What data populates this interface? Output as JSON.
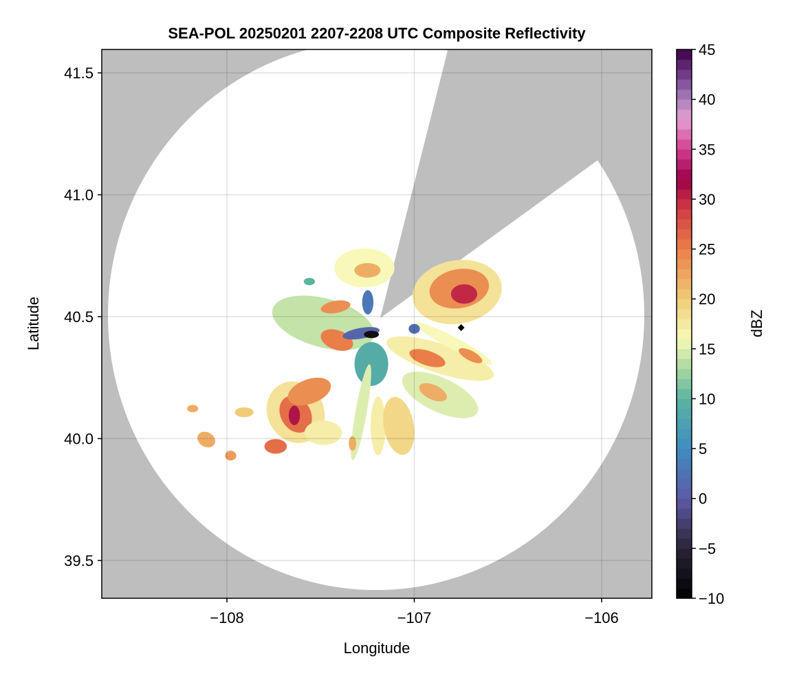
{
  "chart_data": {
    "type": "heatmap",
    "title": "SEA-POL 20250201 2207-2208 UTC Composite Reflectivity",
    "xlabel": "Longitude",
    "ylabel": "Latitude",
    "xlim": [
      -108.668,
      -105.732
    ],
    "ylim": [
      39.345,
      41.596
    ],
    "xticks": [
      -108,
      -107,
      -106
    ],
    "xtick_labels": [
      "−108",
      "−107",
      "−106"
    ],
    "yticks": [
      39.5,
      40.0,
      40.5,
      41.0,
      41.5
    ],
    "ytick_labels": [
      "39.5",
      "40.0",
      "40.5",
      "41.0",
      "41.5"
    ],
    "grid": true,
    "background_color": "#bebebe",
    "radar_center": [
      -107.2,
      40.47
    ],
    "colorbar": {
      "label": "dBZ",
      "range": [
        -10,
        45
      ],
      "ticks": [
        -10,
        -5,
        0,
        5,
        10,
        15,
        20,
        25,
        30,
        35,
        40,
        45
      ],
      "tick_labels": [
        "−10",
        "−5",
        "0",
        "5",
        "10",
        "15",
        "20",
        "25",
        "30",
        "35",
        "40",
        "45"
      ],
      "colormap": [
        [
          -10,
          "#000000"
        ],
        [
          -5,
          "#2a2438"
        ],
        [
          0,
          "#5d5aa6"
        ],
        [
          5,
          "#3f8cc0"
        ],
        [
          10,
          "#5ab4a0"
        ],
        [
          13,
          "#a8d8a0"
        ],
        [
          16,
          "#f8f8b8"
        ],
        [
          20,
          "#f0cc78"
        ],
        [
          25,
          "#ea7e48"
        ],
        [
          29,
          "#d23c44"
        ],
        [
          32,
          "#9c0048"
        ],
        [
          35,
          "#d03e90"
        ],
        [
          38,
          "#e6a0d0"
        ],
        [
          40,
          "#a880bc"
        ],
        [
          42,
          "#7c4894"
        ],
        [
          45,
          "#3c0048"
        ]
      ]
    },
    "echo_cells": [
      {
        "lon": -106.771,
        "lat": 40.601,
        "rlon": 0.24,
        "rlat": 0.13,
        "angle": -10,
        "dbz": 18
      },
      {
        "lon": -106.76,
        "lat": 40.615,
        "rlon": 0.16,
        "rlat": 0.08,
        "angle": -10,
        "dbz": 24
      },
      {
        "lon": -106.734,
        "lat": 40.593,
        "rlon": 0.07,
        "rlat": 0.04,
        "angle": 0,
        "dbz": 30
      },
      {
        "lon": -107.266,
        "lat": 40.7,
        "rlon": 0.16,
        "rlat": 0.08,
        "angle": 0,
        "dbz": 16
      },
      {
        "lon": -107.25,
        "lat": 40.69,
        "rlon": 0.07,
        "rlat": 0.03,
        "angle": 0,
        "dbz": 22
      },
      {
        "lon": -107.486,
        "lat": 40.475,
        "rlon": 0.28,
        "rlat": 0.1,
        "angle": 15,
        "dbz": 14
      },
      {
        "lon": -107.413,
        "lat": 40.404,
        "rlon": 0.09,
        "rlat": 0.04,
        "angle": 20,
        "dbz": 25
      },
      {
        "lon": -107.42,
        "lat": 40.54,
        "rlon": 0.08,
        "rlat": 0.025,
        "angle": -10,
        "dbz": 24
      },
      {
        "lon": -107.229,
        "lat": 40.306,
        "rlon": 0.09,
        "rlat": 0.09,
        "angle": 0,
        "dbz": 9
      },
      {
        "lon": -106.862,
        "lat": 40.328,
        "rlon": 0.3,
        "rlat": 0.06,
        "angle": 18,
        "dbz": 17
      },
      {
        "lon": -106.93,
        "lat": 40.33,
        "rlon": 0.1,
        "rlat": 0.03,
        "angle": 18,
        "dbz": 25
      },
      {
        "lon": -106.789,
        "lat": 40.39,
        "rlon": 0.23,
        "rlat": 0.025,
        "angle": 28,
        "dbz": 16
      },
      {
        "lon": -106.7,
        "lat": 40.34,
        "rlon": 0.07,
        "rlat": 0.02,
        "angle": 28,
        "dbz": 24
      },
      {
        "lon": -106.862,
        "lat": 40.179,
        "rlon": 0.22,
        "rlat": 0.07,
        "angle": 25,
        "dbz": 15
      },
      {
        "lon": -106.9,
        "lat": 40.19,
        "rlon": 0.08,
        "rlat": 0.03,
        "angle": 25,
        "dbz": 22
      },
      {
        "lon": -107.633,
        "lat": 40.108,
        "rlon": 0.15,
        "rlat": 0.13,
        "angle": -30,
        "dbz": 18
      },
      {
        "lon": -107.633,
        "lat": 40.1,
        "rlon": 0.08,
        "rlat": 0.08,
        "angle": -30,
        "dbz": 26
      },
      {
        "lon": -107.64,
        "lat": 40.095,
        "rlon": 0.03,
        "rlat": 0.04,
        "angle": 0,
        "dbz": 31
      },
      {
        "lon": -107.56,
        "lat": 40.193,
        "rlon": 0.12,
        "rlat": 0.05,
        "angle": -20,
        "dbz": 24
      },
      {
        "lon": -107.284,
        "lat": 40.108,
        "rlon": 0.03,
        "rlat": 0.2,
        "angle": 10,
        "dbz": 15
      },
      {
        "lon": -107.193,
        "lat": 40.052,
        "rlon": 0.04,
        "rlat": 0.12,
        "angle": 0,
        "dbz": 17
      },
      {
        "lon": -107.083,
        "lat": 40.052,
        "rlon": 0.08,
        "rlat": 0.12,
        "angle": -10,
        "dbz": 19
      },
      {
        "lon": -107.486,
        "lat": 40.024,
        "rlon": 0.1,
        "rlat": 0.05,
        "angle": 0,
        "dbz": 17
      },
      {
        "lon": -107.74,
        "lat": 39.968,
        "rlon": 0.06,
        "rlat": 0.03,
        "angle": 0,
        "dbz": 26
      },
      {
        "lon": -108.11,
        "lat": 39.996,
        "rlon": 0.05,
        "rlat": 0.03,
        "angle": 30,
        "dbz": 22
      },
      {
        "lon": -107.908,
        "lat": 40.108,
        "rlon": 0.05,
        "rlat": 0.02,
        "angle": 0,
        "dbz": 20
      },
      {
        "lon": -108.183,
        "lat": 40.123,
        "rlon": 0.03,
        "rlat": 0.015,
        "angle": 0,
        "dbz": 22
      },
      {
        "lon": -107.98,
        "lat": 39.93,
        "rlon": 0.03,
        "rlat": 0.02,
        "angle": 0,
        "dbz": 23
      },
      {
        "lon": -107.33,
        "lat": 39.98,
        "rlon": 0.02,
        "rlat": 0.03,
        "angle": 0,
        "dbz": 22
      },
      {
        "lon": -107.284,
        "lat": 40.432,
        "rlon": 0.1,
        "rlat": 0.022,
        "angle": -10,
        "dbz": 1
      },
      {
        "lon": -107.229,
        "lat": 40.427,
        "rlon": 0.04,
        "rlat": 0.015,
        "angle": 0,
        "dbz": -8
      },
      {
        "lon": -107.248,
        "lat": 40.559,
        "rlon": 0.03,
        "rlat": 0.05,
        "angle": 0,
        "dbz": 3
      },
      {
        "lon": -107.0,
        "lat": 40.45,
        "rlon": 0.03,
        "rlat": 0.02,
        "angle": 0,
        "dbz": 2
      },
      {
        "lon": -107.56,
        "lat": 40.644,
        "rlon": 0.03,
        "rlat": 0.015,
        "angle": 0,
        "dbz": 10
      }
    ],
    "marker": {
      "lon": -106.75,
      "lat": 40.455,
      "shape": "diamond",
      "color": "#000000"
    }
  }
}
